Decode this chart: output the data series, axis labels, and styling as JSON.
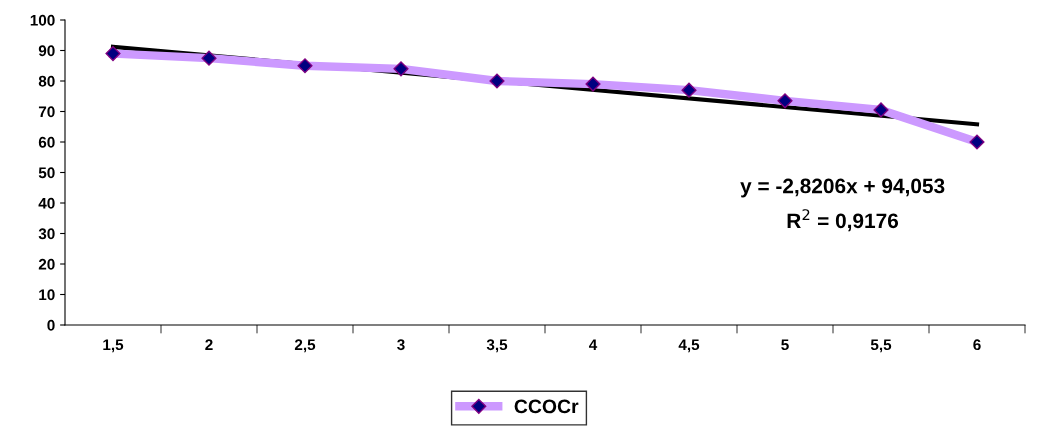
{
  "chart_data": {
    "type": "line",
    "categories": [
      "1,5",
      "2",
      "2,5",
      "3",
      "3,5",
      "4",
      "4,5",
      "5",
      "5,5",
      "6"
    ],
    "series": [
      {
        "name": "CCOCr",
        "color": "#cc99ff",
        "values": [
          89,
          87.5,
          85,
          84,
          80,
          79,
          77,
          73.5,
          70.5,
          60
        ],
        "marker": "diamond"
      },
      {
        "type": "line",
        "color": "#000000",
        "x": [
          "1,5",
          "6"
        ],
        "values": [
          91.2,
          65.8
        ]
      }
    ],
    "ylim": [
      0,
      100
    ],
    "yticks": [
      0,
      10,
      20,
      30,
      40,
      50,
      60,
      70,
      80,
      90,
      100
    ],
    "grid": false,
    "legend": "bottom",
    "annotations": [
      "y = -2,8206x + 94,053",
      "R$^{2}$ = 0,9176"
    ]
  }
}
